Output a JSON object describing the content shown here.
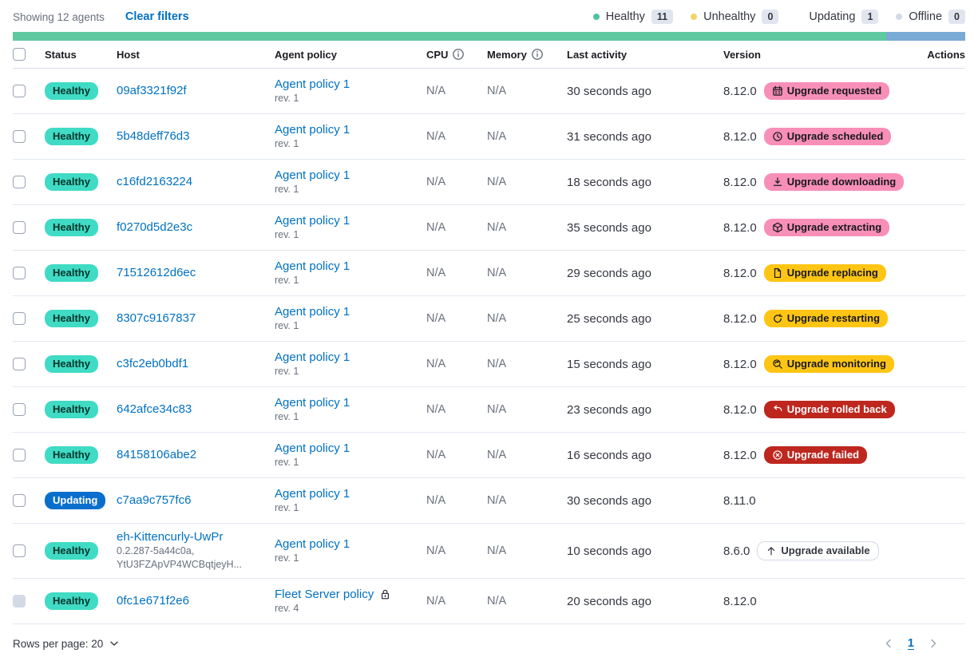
{
  "header": {
    "showing": "Showing 12 agents",
    "clear_filters": "Clear filters",
    "legend": [
      {
        "label": "Healthy",
        "count": "11",
        "color": "#4ec3a4"
      },
      {
        "label": "Unhealthy",
        "count": "0",
        "color": "#f0d469"
      },
      {
        "label": "Updating",
        "count": "1",
        "color": "#5livre"
      },
      {
        "label": "Offline",
        "count": "0",
        "color": "#d3dae6"
      }
    ]
  },
  "stackbar": {
    "segments": [
      {
        "name": "healthy",
        "color": "#5ec9a1",
        "ratio": 11
      },
      {
        "name": "updating",
        "color": "#7aaad6",
        "ratio": 1
      }
    ]
  },
  "columns": {
    "status": "Status",
    "host": "Host",
    "policy": "Agent policy",
    "cpu": "CPU",
    "memory": "Memory",
    "activity": "Last activity",
    "version": "Version",
    "actions": "Actions"
  },
  "rows": [
    {
      "status": "Healthy",
      "status_type": "healthy",
      "host": "09af3321f92f",
      "host_sub": [],
      "policy": "Agent policy 1",
      "rev": "rev. 1",
      "lock": false,
      "cpu": "N/A",
      "memory": "N/A",
      "activity": "30 seconds ago",
      "version": "8.12.0",
      "upgrade": {
        "label": "Upgrade requested",
        "type": "accent",
        "icon": "calendar-icon"
      },
      "version_info": true,
      "checkbox_disabled": false
    },
    {
      "status": "Healthy",
      "status_type": "healthy",
      "host": "5b48deff76d3",
      "host_sub": [],
      "policy": "Agent policy 1",
      "rev": "rev. 1",
      "lock": false,
      "cpu": "N/A",
      "memory": "N/A",
      "activity": "31 seconds ago",
      "version": "8.12.0",
      "upgrade": {
        "label": "Upgrade scheduled",
        "type": "accent",
        "icon": "clock-icon"
      },
      "version_info": true,
      "checkbox_disabled": false
    },
    {
      "status": "Healthy",
      "status_type": "healthy",
      "host": "c16fd2163224",
      "host_sub": [],
      "policy": "Agent policy 1",
      "rev": "rev. 1",
      "lock": false,
      "cpu": "N/A",
      "memory": "N/A",
      "activity": "18 seconds ago",
      "version": "8.12.0",
      "upgrade": {
        "label": "Upgrade downloading",
        "type": "accent",
        "icon": "download-icon"
      },
      "version_info": true,
      "checkbox_disabled": false
    },
    {
      "status": "Healthy",
      "status_type": "healthy",
      "host": "f0270d5d2e3c",
      "host_sub": [],
      "policy": "Agent policy 1",
      "rev": "rev. 1",
      "lock": false,
      "cpu": "N/A",
      "memory": "N/A",
      "activity": "35 seconds ago",
      "version": "8.12.0",
      "upgrade": {
        "label": "Upgrade extracting",
        "type": "accent",
        "icon": "package-icon"
      },
      "version_info": true,
      "checkbox_disabled": false
    },
    {
      "status": "Healthy",
      "status_type": "healthy",
      "host": "71512612d6ec",
      "host_sub": [],
      "policy": "Agent policy 1",
      "rev": "rev. 1",
      "lock": false,
      "cpu": "N/A",
      "memory": "N/A",
      "activity": "29 seconds ago",
      "version": "8.12.0",
      "upgrade": {
        "label": "Upgrade replacing",
        "type": "warning",
        "icon": "document-icon"
      },
      "version_info": true,
      "checkbox_disabled": false
    },
    {
      "status": "Healthy",
      "status_type": "healthy",
      "host": "8307c9167837",
      "host_sub": [],
      "policy": "Agent policy 1",
      "rev": "rev. 1",
      "lock": false,
      "cpu": "N/A",
      "memory": "N/A",
      "activity": "25 seconds ago",
      "version": "8.12.0",
      "upgrade": {
        "label": "Upgrade restarting",
        "type": "warning",
        "icon": "refresh-icon"
      },
      "version_info": true,
      "checkbox_disabled": false
    },
    {
      "status": "Healthy",
      "status_type": "healthy",
      "host": "c3fc2eb0bdf1",
      "host_sub": [],
      "policy": "Agent policy 1",
      "rev": "rev. 1",
      "lock": false,
      "cpu": "N/A",
      "memory": "N/A",
      "activity": "15 seconds ago",
      "version": "8.12.0",
      "upgrade": {
        "label": "Upgrade monitoring",
        "type": "warning",
        "icon": "search-refresh-icon"
      },
      "version_info": true,
      "checkbox_disabled": false
    },
    {
      "status": "Healthy",
      "status_type": "healthy",
      "host": "642afce34c83",
      "host_sub": [],
      "policy": "Agent policy 1",
      "rev": "rev. 1",
      "lock": false,
      "cpu": "N/A",
      "memory": "N/A",
      "activity": "23 seconds ago",
      "version": "8.12.0",
      "upgrade": {
        "label": "Upgrade rolled back",
        "type": "danger",
        "icon": "return-arrow-icon"
      },
      "version_info": true,
      "checkbox_disabled": false
    },
    {
      "status": "Healthy",
      "status_type": "healthy",
      "host": "84158106abe2",
      "host_sub": [],
      "policy": "Agent policy 1",
      "rev": "rev. 1",
      "lock": false,
      "cpu": "N/A",
      "memory": "N/A",
      "activity": "16 seconds ago",
      "version": "8.12.0",
      "upgrade": {
        "label": "Upgrade failed",
        "type": "danger",
        "icon": "cross-circle-icon"
      },
      "version_info": true,
      "checkbox_disabled": false
    },
    {
      "status": "Updating",
      "status_type": "updating",
      "host": "c7aa9c757fc6",
      "host_sub": [],
      "policy": "Agent policy 1",
      "rev": "rev. 1",
      "lock": false,
      "cpu": "N/A",
      "memory": "N/A",
      "activity": "30 seconds ago",
      "version": "8.11.0",
      "upgrade": null,
      "version_info": true,
      "checkbox_disabled": false
    },
    {
      "status": "Healthy",
      "status_type": "healthy",
      "host": "eh-Kittencurly-UwPr",
      "host_sub": [
        "0.2.287-5a44c0a,",
        "YtU3FZApVP4WCBqtjeyH..."
      ],
      "policy": "Agent policy 1",
      "rev": "rev. 1",
      "lock": false,
      "cpu": "N/A",
      "memory": "N/A",
      "activity": "10 seconds ago",
      "version": "8.6.0",
      "upgrade": {
        "label": "Upgrade available",
        "type": "hollow",
        "icon": "arrow-up-icon"
      },
      "version_info": false,
      "checkbox_disabled": false
    },
    {
      "status": "Healthy",
      "status_type": "healthy",
      "host": "0fc1e671f2e6",
      "host_sub": [],
      "policy": "Fleet Server policy",
      "rev": "rev. 4",
      "lock": true,
      "cpu": "N/A",
      "memory": "N/A",
      "activity": "20 seconds ago",
      "version": "8.12.0",
      "upgrade": null,
      "version_info": false,
      "checkbox_disabled": true
    }
  ],
  "footer": {
    "rows_per_page": "Rows per page: 20",
    "page": "1"
  }
}
